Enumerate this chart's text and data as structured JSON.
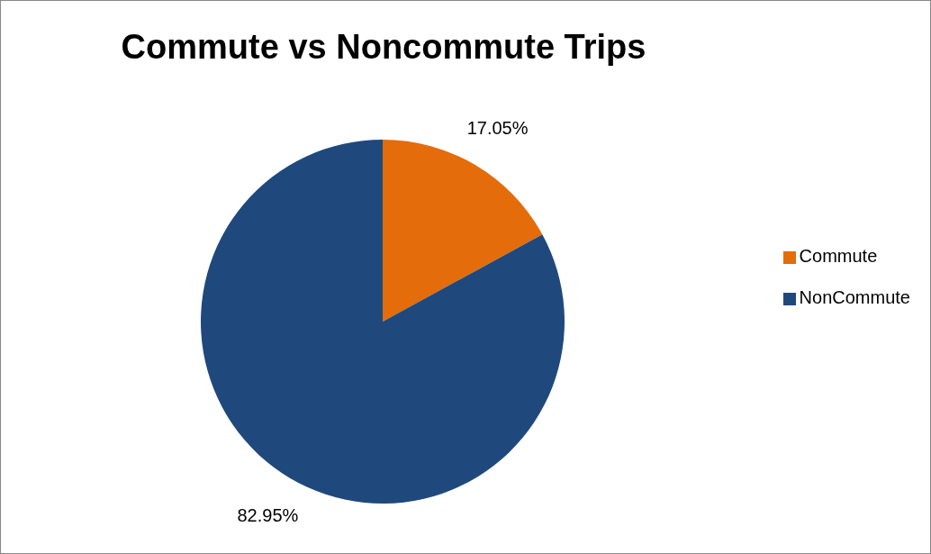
{
  "chart_data": {
    "type": "pie",
    "title": "Commute vs Noncommute Trips",
    "categories": [
      "Commute",
      "NonCommute"
    ],
    "values": [
      17.05,
      82.95
    ],
    "colors": [
      "#e46c0a",
      "#1f497d"
    ],
    "value_labels": [
      "17.05%",
      "82.95%"
    ],
    "legend": "right"
  }
}
